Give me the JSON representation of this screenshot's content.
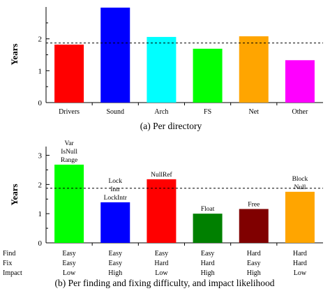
{
  "chart_data": [
    {
      "type": "bar",
      "title": "",
      "caption": "(a)  Per directory",
      "ylabel": "Years",
      "xlabel": "",
      "ylim": [
        0,
        3
      ],
      "yticks": [
        "0",
        "1",
        "2"
      ],
      "grid": false,
      "reference_line": 1.87,
      "categories": [
        "Drivers",
        "Sound",
        "Arch",
        "FS",
        "Net",
        "Other"
      ],
      "values": [
        1.82,
        2.98,
        2.06,
        1.69,
        2.08,
        1.33
      ],
      "colors": [
        "#ff0000",
        "#0000ff",
        "#00ffff",
        "#00ff00",
        "#ffa500",
        "#ff00ff"
      ]
    },
    {
      "type": "bar",
      "title": "",
      "caption": "(b)  Per finding and fixing difficulty, and impact likelihood",
      "ylabel": "Years",
      "xlabel": "",
      "ylim": [
        0,
        3.3
      ],
      "yticks": [
        "0",
        "1",
        "2",
        "3"
      ],
      "grid": false,
      "reference_line": 1.87,
      "row_labels": [
        "Find",
        "Fix",
        "Impact"
      ],
      "categories": [
        [
          "Easy",
          "Easy",
          "Low"
        ],
        [
          "Easy",
          "Easy",
          "High"
        ],
        [
          "Easy",
          "Hard",
          "Low"
        ],
        [
          "Easy",
          "Hard",
          "High"
        ],
        [
          "Hard",
          "Easy",
          "High"
        ],
        [
          "Hard",
          "Hard",
          "Low"
        ]
      ],
      "annotations": [
        [
          "Var",
          "IsNull",
          "Range"
        ],
        [
          "Lock",
          "Intr",
          "LockIntr"
        ],
        [
          "NullRef"
        ],
        [
          "Float"
        ],
        [
          "Free"
        ],
        [
          "Block",
          "Null"
        ]
      ],
      "values": [
        2.68,
        1.39,
        2.18,
        1.0,
        1.16,
        1.75
      ],
      "colors": [
        "#00ff00",
        "#0000ff",
        "#ff0000",
        "#008000",
        "#800000",
        "#ffa500"
      ]
    }
  ]
}
